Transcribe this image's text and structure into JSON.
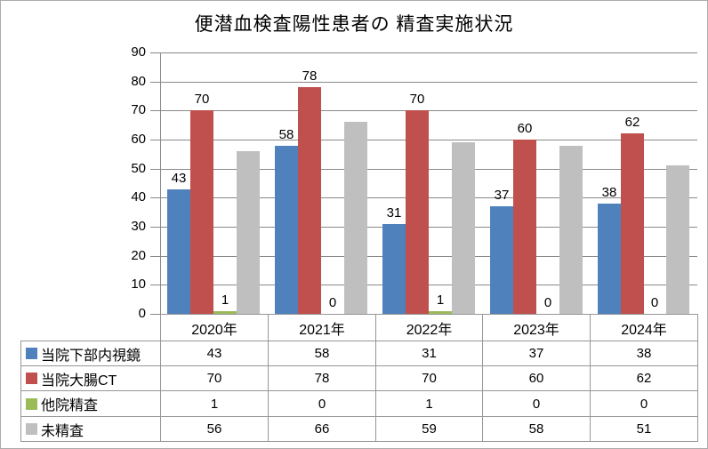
{
  "chart_data": {
    "type": "bar",
    "title": "便潜血検査陽性患者の 精査実施状況",
    "categories": [
      "2020年",
      "2021年",
      "2022年",
      "2023年",
      "2024年"
    ],
    "series": [
      {
        "name": "当院下部内視鏡",
        "color": "#4F81BD",
        "values": [
          43,
          58,
          31,
          37,
          38
        ],
        "data_labels_shown": true
      },
      {
        "name": "当院大腸CT",
        "color": "#C0504D",
        "values": [
          70,
          78,
          70,
          60,
          62
        ],
        "data_labels_shown": true
      },
      {
        "name": "他院精査",
        "color": "#9BBB59",
        "values": [
          1,
          0,
          1,
          0,
          0
        ],
        "data_labels_shown": true
      },
      {
        "name": "未精査",
        "color": "#BFBFBF",
        "values": [
          56,
          66,
          59,
          58,
          51
        ],
        "data_labels_shown": false
      }
    ],
    "xlabel": "",
    "ylabel": "",
    "ylim": [
      0,
      90
    ],
    "ytick_interval": 10,
    "yticks": [
      0,
      10,
      20,
      30,
      40,
      50,
      60,
      70,
      80,
      90
    ],
    "grid": true,
    "gridline_color": "#898989",
    "table_border_color": "#969696",
    "legend_position": "data-table-left"
  }
}
